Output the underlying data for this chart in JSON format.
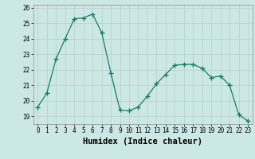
{
  "x": [
    0,
    1,
    2,
    3,
    4,
    5,
    6,
    7,
    8,
    9,
    10,
    11,
    12,
    13,
    14,
    15,
    16,
    17,
    18,
    19,
    20,
    21,
    22,
    23
  ],
  "y": [
    19.6,
    20.5,
    22.7,
    24.0,
    25.3,
    25.35,
    25.6,
    24.4,
    21.8,
    19.4,
    19.35,
    19.6,
    20.3,
    21.1,
    21.7,
    22.3,
    22.35,
    22.35,
    22.1,
    21.5,
    21.6,
    21.0,
    19.1,
    18.7
  ],
  "line_color": "#1a7a6e",
  "marker": "+",
  "marker_size": 4,
  "xlabel": "Humidex (Indice chaleur)",
  "xlim": [
    -0.5,
    23.5
  ],
  "ylim": [
    18.5,
    26.2
  ],
  "yticks": [
    19,
    20,
    21,
    22,
    23,
    24,
    25,
    26
  ],
  "xticks": [
    0,
    1,
    2,
    3,
    4,
    5,
    6,
    7,
    8,
    9,
    10,
    11,
    12,
    13,
    14,
    15,
    16,
    17,
    18,
    19,
    20,
    21,
    22,
    23
  ],
  "bg_color": "#cce8e5",
  "grid_color": "#b8ceca",
  "tick_label_fontsize": 5.5,
  "xlabel_fontsize": 7.5
}
